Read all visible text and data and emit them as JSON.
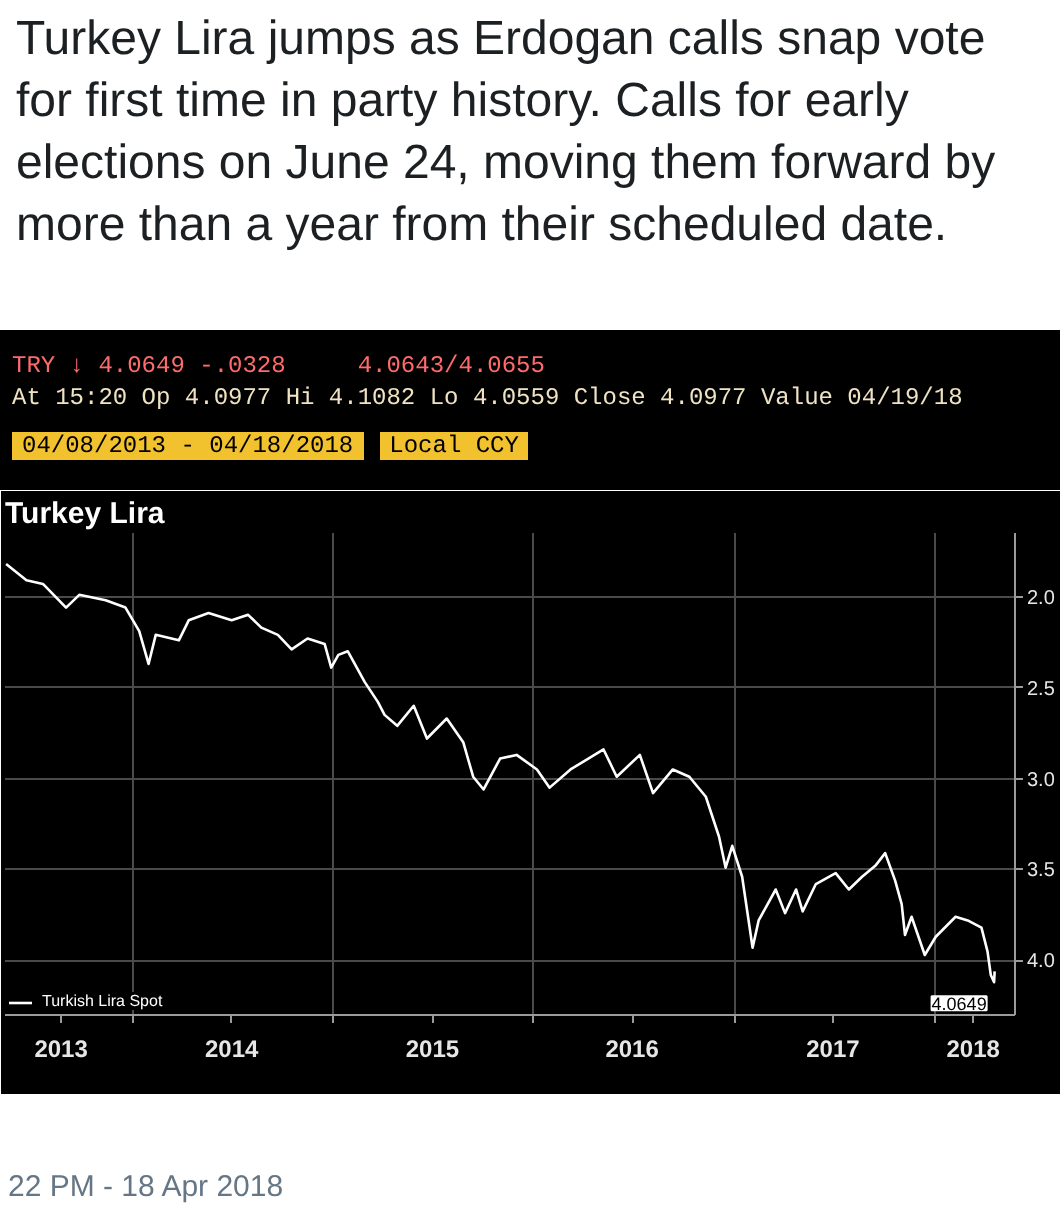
{
  "chart_data": {
    "type": "line",
    "title": "Turkey Lira jumps as Erdogan calls snap vote for first time in party history. Calls for early elections on June 24, moving them forward by more than a year from their scheduled date.",
    "subtitle": "Turkey Lira",
    "annotations": [
      "TRY ↓ 4.0649 -.0328     4.0643/4.0655",
      "At 15:20 Op 4.0977 Hi 4.1082 Lo 4.0559 Close 4.0977 Value 04/19/18",
      "04/08/2013 - 04/18/2018",
      "Local CCY",
      {
        "text": "4.0649",
        "x": "2018-04-18",
        "y": 4.06
      },
      "22 PM - 18 Apr 2018"
    ],
    "series": [
      {
        "name": "Turkish Lira Spot",
        "color": "#ffffff",
        "x": [
          "2013-05-17",
          "2013-06-23",
          "2013-07-23",
          "2013-09-03",
          "2013-09-27",
          "2013-11-14",
          "2013-12-20",
          "2014-01-14",
          "2014-01-31",
          "2014-02-13",
          "2014-03-27",
          "2014-04-14",
          "2014-05-20",
          "2014-07-01",
          "2014-07-31",
          "2014-08-24",
          "2014-09-23",
          "2014-10-18",
          "2014-11-16",
          "2014-12-17",
          "2014-12-29",
          "2015-01-11",
          "2015-01-28",
          "2015-02-28",
          "2015-03-24",
          "2015-04-05",
          "2015-04-28",
          "2015-05-28",
          "2015-06-21",
          "2015-07-27",
          "2015-08-26",
          "2015-09-13",
          "2015-10-02",
          "2015-11-01",
          "2015-12-01",
          "2016-01-07",
          "2016-01-30",
          "2016-03-08",
          "2016-05-07",
          "2016-05-31",
          "2016-07-12",
          "2016-08-05",
          "2016-09-10",
          "2016-10-10",
          "2016-11-09",
          "2016-12-03",
          "2016-12-15",
          "2016-12-27",
          "2017-01-14",
          "2017-02-02",
          "2017-02-13",
          "2017-03-16",
          "2017-04-02",
          "2017-04-22",
          "2017-05-04",
          "2017-05-28",
          "2017-07-03",
          "2017-07-27",
          "2017-08-20",
          "2017-09-13",
          "2017-10-01",
          "2017-10-19",
          "2017-10-31",
          "2017-11-06",
          "2017-11-18",
          "2017-12-12",
          "2018-01-01",
          "2018-02-06",
          "2018-02-28",
          "2018-03-25",
          "2018-04-05",
          "2018-04-11",
          "2018-04-17",
          "2018-04-18"
        ],
        "values": [
          1.82,
          1.91,
          1.93,
          2.06,
          1.99,
          2.02,
          2.06,
          2.19,
          2.37,
          2.21,
          2.24,
          2.13,
          2.09,
          2.13,
          2.1,
          2.17,
          2.21,
          2.29,
          2.23,
          2.26,
          2.39,
          2.32,
          2.3,
          2.47,
          2.58,
          2.65,
          2.71,
          2.6,
          2.78,
          2.67,
          2.8,
          2.99,
          3.06,
          2.89,
          2.87,
          2.95,
          3.05,
          2.95,
          2.84,
          2.99,
          2.87,
          3.08,
          2.95,
          2.99,
          3.1,
          3.32,
          3.49,
          3.37,
          3.54,
          3.93,
          3.78,
          3.61,
          3.74,
          3.61,
          3.73,
          3.58,
          3.52,
          3.61,
          3.54,
          3.48,
          3.41,
          3.56,
          3.69,
          3.86,
          3.76,
          3.97,
          3.87,
          3.76,
          3.78,
          3.82,
          3.95,
          4.08,
          4.12,
          4.06
        ]
      }
    ],
    "xlim": [
      "2013-05-15",
      "2018-05-25"
    ],
    "xticks": [
      {
        "value": "2013-08-25",
        "label": "2013"
      },
      {
        "value": "2014-01-01",
        "label": null
      },
      {
        "value": "2014-07-01",
        "label": "2014"
      },
      {
        "value": "2015-01-01",
        "label": null
      },
      {
        "value": "2015-07-01",
        "label": "2015"
      },
      {
        "value": "2016-01-01",
        "label": null
      },
      {
        "value": "2016-06-28",
        "label": "2016"
      },
      {
        "value": "2017-01-01",
        "label": null
      },
      {
        "value": "2017-06-28",
        "label": "2017"
      },
      {
        "value": "2018-01-01",
        "label": null
      },
      {
        "value": "2018-03-10",
        "label": "2018"
      }
    ],
    "ylim": [
      4.3,
      1.65
    ],
    "yticks": [
      {
        "value": 2,
        "label": "2.0"
      },
      {
        "value": 2.5,
        "label": "2.5"
      },
      {
        "value": 3,
        "label": "3.0"
      },
      {
        "value": 3.5,
        "label": "3.5"
      },
      {
        "value": 4,
        "label": "4.0"
      }
    ],
    "grid": true,
    "legend": "bottom left",
    "line_style": "solid"
  }
}
